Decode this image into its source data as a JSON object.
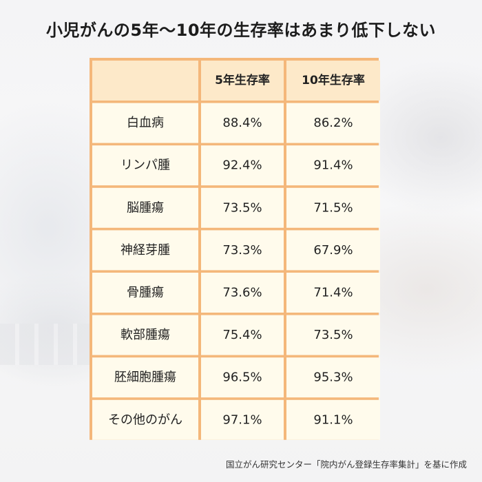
{
  "title": "小児がんの5年〜10年の生存率はあまり低下しない",
  "source": "国立がん研究センター「院内がん登録生存率集計」を基に作成",
  "colors": {
    "header_bg": "#fde9c9",
    "cell_bg": "#fffbec",
    "border": "#f4b77a"
  },
  "chart_data": {
    "type": "table",
    "columns": [
      "",
      "5年生存率",
      "10年生存率"
    ],
    "categories": [
      "白血病",
      "リンパ腫",
      "脳腫瘍",
      "神経芽腫",
      "骨腫瘍",
      "軟部腫瘍",
      "胚細胞腫瘍",
      "その他のがん"
    ],
    "series": [
      {
        "name": "5年生存率",
        "values": [
          88.4,
          92.4,
          73.5,
          73.3,
          73.6,
          75.4,
          96.5,
          97.1
        ]
      },
      {
        "name": "10年生存率",
        "values": [
          86.2,
          91.4,
          71.5,
          67.9,
          71.4,
          73.5,
          95.3,
          91.1
        ]
      }
    ],
    "value_suffix": "%"
  }
}
